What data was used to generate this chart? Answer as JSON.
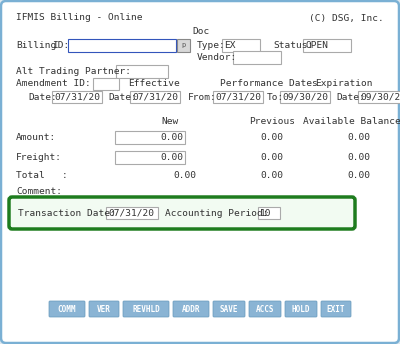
{
  "bg_color": "#dce8f0",
  "outer_border_color": "#7ab0d4",
  "form_bg": "#ffffff",
  "title_left": "IFMIS Billing - Online",
  "title_right": "(C) DSG, Inc.",
  "label_color": "#333333",
  "input_bg": "#ffffff",
  "input_border": "#aaaaaa",
  "highlight_border": "#1e7c1e",
  "button_bg": "#8ab4d4",
  "button_text": "#ffffff",
  "button_labels": [
    "COMM",
    "VER",
    "REVHLD",
    "ADDR",
    "SAVE",
    "ACCS",
    "HOLD",
    "EXIT"
  ],
  "blue_input_border": "#3355bb",
  "fs": 6.8
}
